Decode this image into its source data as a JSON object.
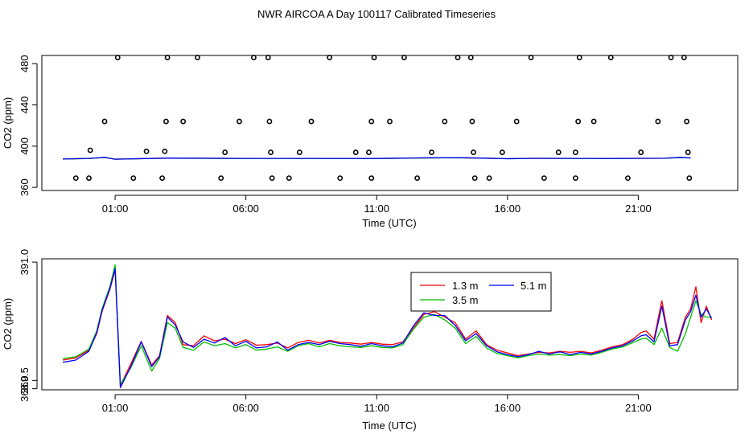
{
  "figure": {
    "title": "NWR AIRCOA A  Day 100117  Calibrated Timeseries"
  },
  "colors": {
    "line_1_3": "#ff0000",
    "line_3_5": "#00c000",
    "line_5_1": "#0000ff",
    "axis": "#000000"
  },
  "chart_data": [
    {
      "type": "line",
      "title": "",
      "xlabel": "Time (UTC)",
      "ylabel": "CO2 (ppm)",
      "xlim": [
        -1.8,
        24.8
      ],
      "ylim": [
        357,
        488
      ],
      "xticks": [
        1,
        6,
        11,
        16,
        21
      ],
      "xtick_labels": [
        "01:00",
        "06:00",
        "11:00",
        "16:00",
        "21:00"
      ],
      "yticks": [
        360,
        400,
        440,
        480
      ],
      "ytick_labels": [
        "360",
        "400",
        "440",
        "480"
      ],
      "scatter_points": [
        [
          0.05,
          396
        ],
        [
          0.0,
          369
        ],
        [
          -0.5,
          369
        ],
        [
          0.6,
          424
        ],
        [
          1.1,
          486
        ],
        [
          2.2,
          395
        ],
        [
          1.7,
          369
        ],
        [
          2.9,
          395
        ],
        [
          2.8,
          369
        ],
        [
          3.0,
          486
        ],
        [
          2.95,
          424
        ],
        [
          3.6,
          424
        ],
        [
          4.15,
          486
        ],
        [
          5.05,
          369
        ],
        [
          5.2,
          394
        ],
        [
          5.75,
          424
        ],
        [
          6.3,
          486
        ],
        [
          6.85,
          486
        ],
        [
          6.9,
          424
        ],
        [
          6.95,
          394
        ],
        [
          7.0,
          369
        ],
        [
          7.65,
          369
        ],
        [
          8.05,
          394
        ],
        [
          8.5,
          424
        ],
        [
          9.2,
          486
        ],
        [
          9.6,
          369
        ],
        [
          10.2,
          394
        ],
        [
          10.7,
          394
        ],
        [
          10.8,
          424
        ],
        [
          10.8,
          369
        ],
        [
          10.9,
          486
        ],
        [
          11.5,
          424
        ],
        [
          12.05,
          486
        ],
        [
          12.55,
          369
        ],
        [
          13.1,
          394
        ],
        [
          13.6,
          424
        ],
        [
          14.1,
          486
        ],
        [
          14.6,
          486
        ],
        [
          14.65,
          424
        ],
        [
          14.7,
          394
        ],
        [
          14.75,
          369
        ],
        [
          15.3,
          369
        ],
        [
          15.8,
          394
        ],
        [
          16.35,
          424
        ],
        [
          16.9,
          486
        ],
        [
          17.4,
          369
        ],
        [
          17.95,
          394
        ],
        [
          18.6,
          394
        ],
        [
          18.6,
          369
        ],
        [
          18.7,
          424
        ],
        [
          18.75,
          486
        ],
        [
          19.3,
          424
        ],
        [
          19.95,
          486
        ],
        [
          20.6,
          369
        ],
        [
          21.1,
          394
        ],
        [
          21.75,
          424
        ],
        [
          22.25,
          486
        ],
        [
          22.75,
          486
        ],
        [
          22.85,
          424
        ],
        [
          22.9,
          394
        ],
        [
          22.95,
          369
        ]
      ],
      "series": [
        {
          "name": "1.3 m",
          "x": [
            -1,
            0,
            0.6,
            1,
            3,
            6,
            11,
            13,
            14,
            15,
            16,
            17,
            19,
            20,
            21,
            22,
            22.6,
            23
          ],
          "values": [
            387.6,
            388,
            389,
            387.4,
            388.4,
            388.1,
            388,
            388.6,
            388.8,
            388.4,
            387.9,
            388.2,
            388.1,
            388,
            388.2,
            388.3,
            389,
            388.6
          ]
        },
        {
          "name": "3.5 m",
          "x": [
            -1,
            0,
            0.6,
            1,
            3,
            6,
            11,
            13,
            14,
            15,
            16,
            17,
            19,
            20,
            21,
            22,
            22.6,
            23
          ],
          "values": [
            387.6,
            388,
            389,
            387.3,
            388.3,
            388,
            387.9,
            388.5,
            388.7,
            388.3,
            387.8,
            388.1,
            388,
            387.9,
            388.1,
            388.2,
            388.9,
            388.5
          ]
        },
        {
          "name": "5.1 m",
          "x": [
            -1,
            0,
            0.6,
            1,
            3,
            6,
            11,
            13,
            14,
            15,
            16,
            17,
            19,
            20,
            21,
            22,
            22.6,
            23
          ],
          "values": [
            387.5,
            388.1,
            389.2,
            387.3,
            388.4,
            388.1,
            388,
            388.7,
            388.9,
            388.4,
            387.8,
            388.2,
            388.1,
            388,
            388.2,
            388.3,
            389.1,
            388.6
          ]
        }
      ]
    },
    {
      "type": "line",
      "title": "",
      "xlabel": "Time (UTC)",
      "ylabel": "CO2 (ppm)",
      "xlim": [
        -1.8,
        24.8
      ],
      "ylim": [
        367.8,
        391.6
      ],
      "xticks": [
        1,
        6,
        11,
        16,
        21
      ],
      "xtick_labels": [
        "01:00",
        "06:00",
        "11:00",
        "16:00",
        "21:00"
      ],
      "yticks": [
        368.0,
        369.5,
        391.0
      ],
      "ytick_labels": [
        "368.0",
        "369.5",
        "391.0"
      ],
      "legend": {
        "placement": "top-center",
        "entries": [
          "1.3 m",
          "3.5 m",
          "5.1 m"
        ]
      },
      "series": [
        {
          "name": "1.3 m",
          "x": [
            -1,
            -0.5,
            0,
            0.3,
            0.5,
            0.8,
            1.0,
            1.2,
            1.6,
            2.0,
            2.4,
            2.7,
            3.0,
            3.3,
            3.6,
            4.0,
            4.4,
            4.8,
            5.2,
            5.6,
            6.0,
            6.4,
            6.8,
            7.2,
            7.6,
            8.0,
            8.4,
            8.8,
            9.2,
            9.6,
            10.0,
            10.4,
            10.8,
            11.2,
            11.6,
            12.0,
            12.4,
            12.8,
            13.2,
            13.6,
            14.0,
            14.4,
            14.8,
            15.2,
            15.6,
            16.0,
            16.4,
            16.8,
            17.2,
            17.6,
            18.0,
            18.4,
            18.8,
            19.2,
            19.6,
            20.0,
            20.4,
            20.8,
            21.1,
            21.3,
            21.6,
            21.9,
            22.2,
            22.5,
            22.8,
            23.0,
            23.2,
            23.4,
            23.6,
            23.8
          ],
          "values": [
            373.2,
            373.6,
            375.0,
            378.0,
            382.0,
            386.0,
            389.6,
            368.6,
            372.5,
            376.6,
            372.3,
            374.0,
            381.3,
            380.0,
            376.0,
            375.8,
            377.6,
            376.7,
            377.0,
            376.2,
            376.9,
            375.9,
            376.0,
            376.3,
            375.4,
            376.4,
            376.8,
            376.3,
            376.8,
            376.4,
            376.3,
            376.1,
            376.4,
            376.1,
            376.0,
            376.5,
            379.0,
            381.5,
            382.0,
            381.0,
            380.0,
            377.0,
            378.5,
            376.0,
            375.0,
            374.5,
            374.0,
            374.3,
            374.6,
            374.5,
            374.8,
            374.6,
            374.8,
            374.5,
            375.0,
            375.6,
            376.0,
            377.0,
            378.2,
            378.5,
            377.0,
            384.0,
            376.2,
            376.4,
            381.0,
            382.5,
            386.5,
            380.0,
            383.0,
            380.5
          ]
        },
        {
          "name": "3.5 m",
          "x": [
            -1,
            -0.5,
            0,
            0.3,
            0.5,
            0.8,
            1.0,
            1.2,
            1.6,
            2.0,
            2.4,
            2.7,
            3.0,
            3.3,
            3.6,
            4.0,
            4.4,
            4.8,
            5.2,
            5.6,
            6.0,
            6.4,
            6.8,
            7.2,
            7.6,
            8.0,
            8.4,
            8.8,
            9.2,
            9.6,
            10.0,
            10.4,
            10.8,
            11.2,
            11.6,
            12.0,
            12.4,
            12.8,
            13.2,
            13.6,
            14.0,
            14.4,
            14.8,
            15.2,
            15.6,
            16.0,
            16.4,
            16.8,
            17.2,
            17.6,
            18.0,
            18.4,
            18.8,
            19.2,
            19.6,
            20.0,
            20.4,
            20.8,
            21.1,
            21.3,
            21.6,
            21.9,
            22.2,
            22.5,
            22.8,
            23.0,
            23.2,
            23.4,
            23.6,
            23.8
          ],
          "values": [
            373.5,
            373.8,
            375.2,
            378.5,
            382.5,
            386.5,
            390.5,
            368.8,
            371.8,
            375.8,
            371.2,
            373.5,
            380.0,
            379.0,
            375.5,
            375.0,
            376.5,
            375.8,
            376.2,
            375.4,
            376.0,
            375.0,
            375.2,
            375.6,
            374.8,
            375.8,
            376.2,
            375.6,
            376.2,
            375.8,
            375.6,
            375.5,
            375.8,
            375.5,
            375.4,
            376.0,
            378.8,
            381.0,
            381.5,
            380.5,
            379.0,
            376.2,
            377.5,
            375.4,
            374.4,
            374.0,
            373.6,
            374.0,
            374.3,
            374.1,
            374.2,
            374.0,
            374.3,
            374.1,
            374.6,
            375.2,
            375.6,
            376.4,
            377.0,
            377.2,
            376.0,
            379.0,
            375.5,
            374.8,
            378.0,
            381.0,
            384.0,
            381.5,
            381.0,
            381.0
          ]
        },
        {
          "name": "5.1 m",
          "x": [
            -1,
            -0.5,
            0,
            0.3,
            0.5,
            0.8,
            1.0,
            1.2,
            1.6,
            2.0,
            2.4,
            2.7,
            3.0,
            3.3,
            3.6,
            4.0,
            4.4,
            4.8,
            5.2,
            5.6,
            6.0,
            6.4,
            6.8,
            7.2,
            7.6,
            8.0,
            8.4,
            8.8,
            9.2,
            9.6,
            10.0,
            10.4,
            10.8,
            11.2,
            11.6,
            12.0,
            12.4,
            12.8,
            13.2,
            13.6,
            14.0,
            14.4,
            14.8,
            15.2,
            15.6,
            16.0,
            16.4,
            16.8,
            17.2,
            17.6,
            18.0,
            18.4,
            18.8,
            19.2,
            19.6,
            20.0,
            20.4,
            20.8,
            21.1,
            21.3,
            21.6,
            21.9,
            22.2,
            22.5,
            22.8,
            23.0,
            23.2,
            23.4,
            23.6,
            23.8
          ],
          "values": [
            372.8,
            373.2,
            374.8,
            378.2,
            382.2,
            386.2,
            389.8,
            368.2,
            372.0,
            376.5,
            372.0,
            373.8,
            381.0,
            379.6,
            376.5,
            375.5,
            377.0,
            376.3,
            377.3,
            375.8,
            376.6,
            375.4,
            375.6,
            376.5,
            375.0,
            376.0,
            376.4,
            376.0,
            376.6,
            376.2,
            376.0,
            375.7,
            376.2,
            375.8,
            375.6,
            376.3,
            379.4,
            381.8,
            381.3,
            381.3,
            379.5,
            376.7,
            378.0,
            375.8,
            374.7,
            374.2,
            373.8,
            374.2,
            374.8,
            374.3,
            374.7,
            374.2,
            374.6,
            374.3,
            374.8,
            375.4,
            375.8,
            376.7,
            377.6,
            377.8,
            376.5,
            383.0,
            375.8,
            376.0,
            380.5,
            382.0,
            385.0,
            381.0,
            382.5,
            380.8
          ]
        }
      ]
    }
  ]
}
